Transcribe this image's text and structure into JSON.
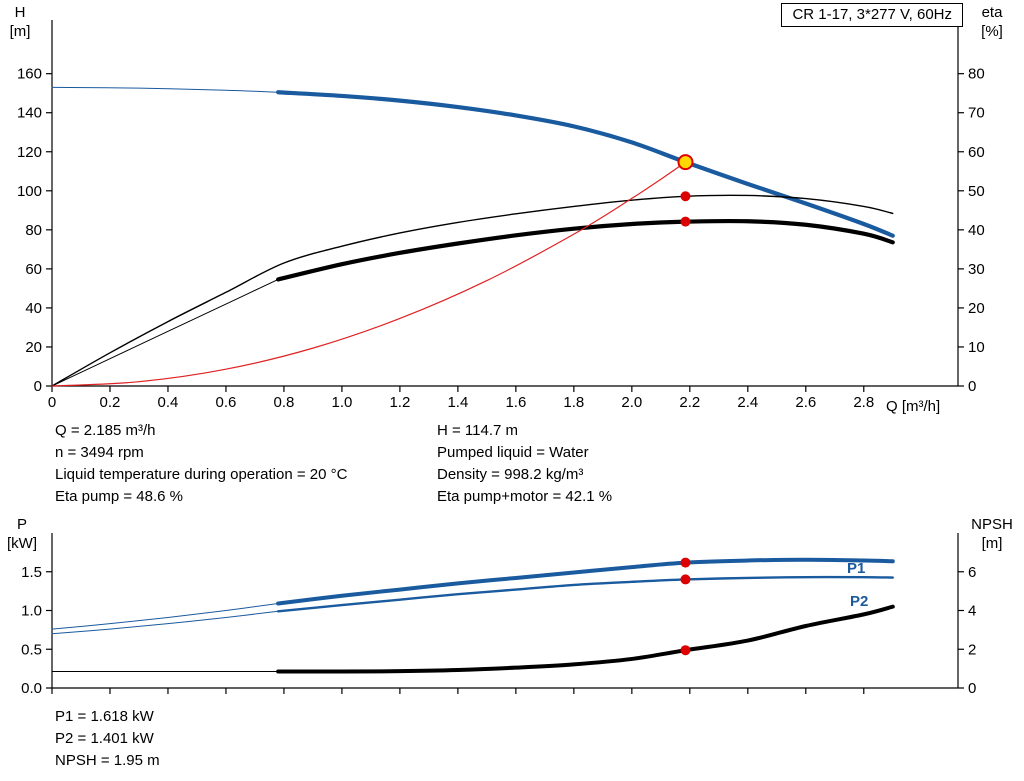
{
  "title_box": "CR 1-17, 3*277 V, 60Hz",
  "colors": {
    "curve_blue": "#1a5a9e",
    "curve_black": "#000000",
    "curve_red": "#e02222",
    "duty_fill": "#ffd800",
    "dot_red": "#dd0000",
    "axis": "#000000"
  },
  "operating_point_info": {
    "left": [
      "Q = 2.185 m³/h",
      "n = 3494 rpm",
      "Liquid temperature during operation = 20 °C",
      "Eta pump = 48.6 %"
    ],
    "right": [
      "H = 114.7 m",
      "Pumped liquid = Water",
      "Density = 998.2 kg/m³",
      "Eta pump+motor = 42.1 %"
    ]
  },
  "power_info": [
    "P1 = 1.618 kW",
    "P2 = 1.401 kW",
    "NPSH = 1.95 m"
  ],
  "chart_data": [
    {
      "type": "line",
      "name": "head-efficiency-chart",
      "x_axis": {
        "label": "Q [m³/h]",
        "min": 0,
        "max": 3.125,
        "ticks": [
          0,
          0.2,
          0.4,
          0.6,
          0.8,
          1.0,
          1.2,
          1.4,
          1.6,
          1.8,
          2.0,
          2.2,
          2.4,
          2.6,
          2.8
        ],
        "tick_labels": [
          "0",
          "0.2",
          "0.4",
          "0.6",
          "0.8",
          "1.0",
          "1.2",
          "1.4",
          "1.6",
          "1.8",
          "2.0",
          "2.2",
          "2.4",
          "2.6",
          "2.8"
        ]
      },
      "y_left": {
        "label_lines": [
          "H",
          "[m]"
        ],
        "min": 0,
        "max": 187.5,
        "ticks": [
          0,
          20,
          40,
          60,
          80,
          100,
          120,
          140,
          160
        ],
        "tick_labels": [
          "0",
          "20",
          "40",
          "60",
          "80",
          "100",
          "120",
          "140",
          "160"
        ]
      },
      "y_right": {
        "label_lines": [
          "eta",
          "[%]"
        ],
        "min": 0,
        "max": 93.75,
        "ticks": [
          0,
          10,
          20,
          30,
          40,
          50,
          60,
          70,
          80
        ],
        "tick_labels": [
          "0",
          "10",
          "20",
          "30",
          "40",
          "50",
          "60",
          "70",
          "80"
        ]
      },
      "series": [
        {
          "name": "head-curve",
          "axis": "left",
          "color_key": "curve_blue",
          "width": 4.2,
          "thin_until": 0.78,
          "points": [
            [
              0,
              153
            ],
            [
              0.3,
              152.6
            ],
            [
              0.6,
              151.5
            ],
            [
              0.78,
              150.5
            ],
            [
              1.0,
              148.6
            ],
            [
              1.2,
              146.2
            ],
            [
              1.4,
              142.9
            ],
            [
              1.6,
              138.6
            ],
            [
              1.8,
              133.0
            ],
            [
              2.0,
              124.8
            ],
            [
              2.185,
              114.7
            ],
            [
              2.4,
              103.5
            ],
            [
              2.6,
              93.5
            ],
            [
              2.8,
              83.0
            ],
            [
              2.9,
              77.0
            ]
          ]
        },
        {
          "name": "eta-pump-curve",
          "axis": "right",
          "color_key": "curve_black",
          "width": 1.4,
          "points": [
            [
              0,
              0
            ],
            [
              0.2,
              8.5
            ],
            [
              0.4,
              16.5
            ],
            [
              0.6,
              24.0
            ],
            [
              0.8,
              31.5
            ],
            [
              1.0,
              35.8
            ],
            [
              1.2,
              39.2
            ],
            [
              1.4,
              41.9
            ],
            [
              1.6,
              44.1
            ],
            [
              1.8,
              46.0
            ],
            [
              2.0,
              47.6
            ],
            [
              2.185,
              48.6
            ],
            [
              2.4,
              48.8
            ],
            [
              2.6,
              48.0
            ],
            [
              2.8,
              46.0
            ],
            [
              2.9,
              44.2
            ]
          ]
        },
        {
          "name": "eta-pump-motor-curve",
          "axis": "right",
          "color_key": "curve_black",
          "width": 4.2,
          "thin_until": 0.78,
          "points": [
            [
              0,
              0
            ],
            [
              0.2,
              7.0
            ],
            [
              0.4,
              14.0
            ],
            [
              0.6,
              21.0
            ],
            [
              0.78,
              27.3
            ],
            [
              1.0,
              31.2
            ],
            [
              1.2,
              34.1
            ],
            [
              1.4,
              36.5
            ],
            [
              1.6,
              38.6
            ],
            [
              1.8,
              40.3
            ],
            [
              2.0,
              41.5
            ],
            [
              2.185,
              42.1
            ],
            [
              2.4,
              42.2
            ],
            [
              2.6,
              41.3
            ],
            [
              2.8,
              39.0
            ],
            [
              2.9,
              36.8
            ]
          ]
        },
        {
          "name": "load-curve",
          "axis": "left",
          "color_key": "curve_red",
          "width": 1.2,
          "points": [
            [
              0,
              0
            ],
            [
              0.3,
              2.2
            ],
            [
              0.6,
              8.6
            ],
            [
              0.9,
              19.4
            ],
            [
              1.2,
              34.6
            ],
            [
              1.5,
              54.0
            ],
            [
              1.8,
              77.8
            ],
            [
              2.0,
              96.1
            ],
            [
              2.1,
              105.9
            ],
            [
              2.185,
              114.7
            ]
          ]
        }
      ],
      "markers": [
        {
          "name": "duty-point",
          "axis": "left",
          "x": 2.185,
          "y": 114.7,
          "style": "duty"
        },
        {
          "name": "eta-pump-point",
          "axis": "right",
          "x": 2.185,
          "y": 48.6,
          "style": "dot"
        },
        {
          "name": "eta-pump-motor-point",
          "axis": "right",
          "x": 2.185,
          "y": 42.1,
          "style": "dot"
        }
      ]
    },
    {
      "type": "line",
      "name": "power-npsh-chart",
      "x_axis": {
        "label": "",
        "min": 0,
        "max": 3.125,
        "ticks": [
          0,
          0.2,
          0.4,
          0.6,
          0.8,
          1.0,
          1.2,
          1.4,
          1.6,
          1.8,
          2.0,
          2.2,
          2.4,
          2.6,
          2.8
        ],
        "tick_labels": []
      },
      "y_left": {
        "label_lines": [
          "P",
          "[kW]"
        ],
        "min": 0,
        "max": 2.0,
        "ticks": [
          0,
          0.5,
          1.0,
          1.5
        ],
        "tick_labels": [
          "0.0",
          "0.5",
          "1.0",
          "1.5"
        ]
      },
      "y_right": {
        "label_lines": [
          "NPSH",
          "[m]"
        ],
        "min": 0,
        "max": 8,
        "ticks": [
          0,
          2,
          4,
          6
        ],
        "tick_labels": [
          "0",
          "2",
          "4",
          "6"
        ]
      },
      "series": [
        {
          "name": "p1-curve",
          "axis": "left",
          "color_key": "curve_blue",
          "width": 4.0,
          "thin_until": 0.78,
          "points": [
            [
              0,
              0.76
            ],
            [
              0.2,
              0.83
            ],
            [
              0.4,
              0.91
            ],
            [
              0.6,
              1.0
            ],
            [
              0.78,
              1.09
            ],
            [
              1.0,
              1.19
            ],
            [
              1.2,
              1.27
            ],
            [
              1.4,
              1.35
            ],
            [
              1.6,
              1.42
            ],
            [
              1.8,
              1.49
            ],
            [
              2.0,
              1.56
            ],
            [
              2.185,
              1.618
            ],
            [
              2.4,
              1.645
            ],
            [
              2.6,
              1.655
            ],
            [
              2.8,
              1.645
            ],
            [
              2.9,
              1.635
            ]
          ]
        },
        {
          "name": "p2-curve",
          "axis": "left",
          "color_key": "curve_blue",
          "width": 2.4,
          "thin_until": 0.78,
          "points": [
            [
              0,
              0.7
            ],
            [
              0.2,
              0.76
            ],
            [
              0.4,
              0.83
            ],
            [
              0.6,
              0.91
            ],
            [
              0.78,
              0.99
            ],
            [
              1.0,
              1.07
            ],
            [
              1.2,
              1.14
            ],
            [
              1.4,
              1.21
            ],
            [
              1.6,
              1.27
            ],
            [
              1.8,
              1.33
            ],
            [
              2.0,
              1.37
            ],
            [
              2.185,
              1.401
            ],
            [
              2.4,
              1.42
            ],
            [
              2.6,
              1.43
            ],
            [
              2.8,
              1.43
            ],
            [
              2.9,
              1.425
            ]
          ]
        },
        {
          "name": "npsh-curve",
          "axis": "right",
          "color_key": "curve_black",
          "width": 4.0,
          "thin_until": 0.78,
          "points": [
            [
              0,
              0.85
            ],
            [
              0.4,
              0.85
            ],
            [
              0.78,
              0.85
            ],
            [
              1.0,
              0.85
            ],
            [
              1.2,
              0.87
            ],
            [
              1.4,
              0.93
            ],
            [
              1.6,
              1.05
            ],
            [
              1.8,
              1.22
            ],
            [
              2.0,
              1.5
            ],
            [
              2.185,
              1.95
            ],
            [
              2.4,
              2.45
            ],
            [
              2.6,
              3.2
            ],
            [
              2.8,
              3.8
            ],
            [
              2.9,
              4.2
            ]
          ]
        }
      ],
      "markers": [
        {
          "name": "p1-point",
          "axis": "left",
          "x": 2.185,
          "y": 1.618,
          "style": "dot"
        },
        {
          "name": "p2-point",
          "axis": "left",
          "x": 2.185,
          "y": 1.401,
          "style": "dot"
        },
        {
          "name": "npsh-point",
          "axis": "right",
          "x": 2.185,
          "y": 1.95,
          "style": "dot"
        }
      ],
      "curve_labels": [
        {
          "text": "P1"
        },
        {
          "text": "P2"
        }
      ]
    }
  ]
}
